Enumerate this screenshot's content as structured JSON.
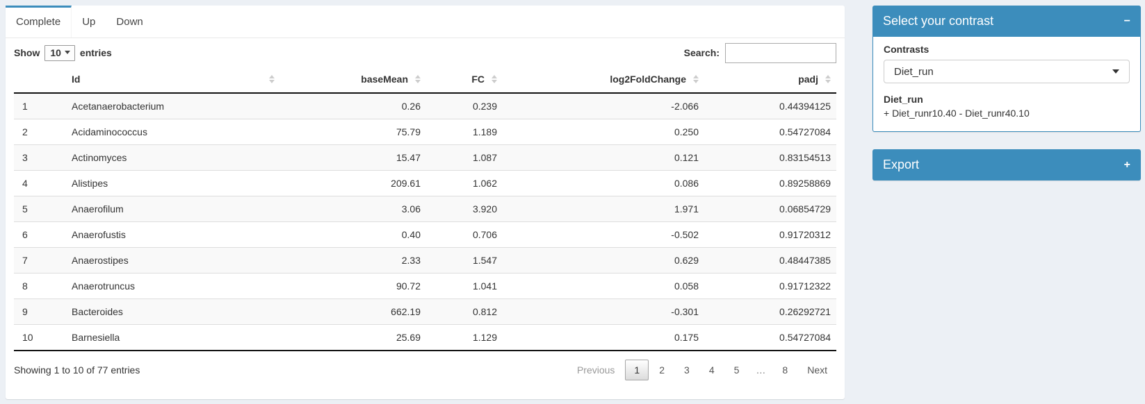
{
  "tabs": [
    {
      "label": "Complete",
      "active": true
    },
    {
      "label": "Up",
      "active": false
    },
    {
      "label": "Down",
      "active": false
    }
  ],
  "length_control": {
    "prefix": "Show",
    "value": "10",
    "suffix": "entries"
  },
  "search": {
    "label": "Search:",
    "value": ""
  },
  "table": {
    "columns": [
      {
        "key": "index",
        "label": "",
        "sortable": false,
        "align": "left"
      },
      {
        "key": "id",
        "label": "Id",
        "sortable": true,
        "align": "left"
      },
      {
        "key": "basemean",
        "label": "baseMean",
        "sortable": true,
        "align": "right"
      },
      {
        "key": "fc",
        "label": "FC",
        "sortable": true,
        "align": "right"
      },
      {
        "key": "log2foldchange",
        "label": "log2FoldChange",
        "sortable": true,
        "align": "right"
      },
      {
        "key": "padj",
        "label": "padj",
        "sortable": true,
        "align": "right"
      }
    ],
    "rows": [
      [
        "1",
        "Acetanaerobacterium",
        "0.26",
        "0.239",
        "-2.066",
        "0.44394125"
      ],
      [
        "2",
        "Acidaminococcus",
        "75.79",
        "1.189",
        "0.250",
        "0.54727084"
      ],
      [
        "3",
        "Actinomyces",
        "15.47",
        "1.087",
        "0.121",
        "0.83154513"
      ],
      [
        "4",
        "Alistipes",
        "209.61",
        "1.062",
        "0.086",
        "0.89258869"
      ],
      [
        "5",
        "Anaerofilum",
        "3.06",
        "3.920",
        "1.971",
        "0.06854729"
      ],
      [
        "6",
        "Anaerofustis",
        "0.40",
        "0.706",
        "-0.502",
        "0.91720312"
      ],
      [
        "7",
        "Anaerostipes",
        "2.33",
        "1.547",
        "0.629",
        "0.48447385"
      ],
      [
        "8",
        "Anaerotruncus",
        "90.72",
        "1.041",
        "0.058",
        "0.91712322"
      ],
      [
        "9",
        "Bacteroides",
        "662.19",
        "0.812",
        "-0.301",
        "0.26292721"
      ],
      [
        "10",
        "Barnesiella",
        "25.69",
        "1.129",
        "0.175",
        "0.54727084"
      ]
    ]
  },
  "footer": {
    "info": "Showing 1 to 10 of 77 entries",
    "pagination": {
      "previous_label": "Previous",
      "next_label": "Next",
      "pages": [
        "1",
        "2",
        "3",
        "4",
        "5",
        "…",
        "8"
      ],
      "current_page": "1"
    }
  },
  "contrast_panel": {
    "title": "Select your contrast",
    "collapse_icon": "−",
    "contrasts_label": "Contrasts",
    "selected_contrast": "Diet_run",
    "detail_title": "Diet_run",
    "detail_formula": "+ Diet_runr10.40 - Diet_runr40.10"
  },
  "export_panel": {
    "title": "Export",
    "expand_icon": "+"
  },
  "colors": {
    "accent": "#3c8dbc",
    "page_bg": "#ecf0f5",
    "stripe": "#f9f9f9",
    "header_border": "#111111"
  }
}
